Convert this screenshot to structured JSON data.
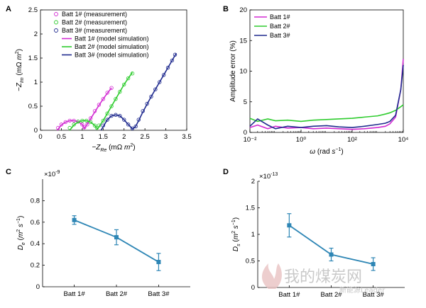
{
  "panels": {
    "A": {
      "letter": "A"
    },
    "B": {
      "letter": "B"
    },
    "C": {
      "letter": "C"
    },
    "D": {
      "letter": "D"
    }
  },
  "colors": {
    "batt1": "#d22ad2",
    "batt2": "#2ecc2e",
    "batt3": "#1f2a8e",
    "errorbar": "#2e86b5",
    "axis": "#000000",
    "watermark": "#c8c8c8"
  },
  "watermark": {
    "text": "我的煤炭网",
    "subtext": "新能源Leader",
    "logo_icon": "flame-logo-icon"
  },
  "chart_data": [
    {
      "id": "A",
      "type": "scatter",
      "xlabel": "−Z_Re (mΩ m²)",
      "ylabel": "−Z_Im (mΩ m²)",
      "xlim": [
        0,
        3.5
      ],
      "ylim": [
        0,
        2.5
      ],
      "xticks": [
        "0",
        "0.5",
        "1",
        "1.5",
        "2",
        "2.5",
        "3",
        "3.5"
      ],
      "yticks": [
        "0",
        "0.5",
        "1",
        "1.5",
        "2",
        "2.5"
      ],
      "legend": [
        "Batt 1# (measurement)",
        "Batt 2# (measurement)",
        "Batt 3# (measurement)",
        "Batt 1# (model simulation)",
        "Batt 2# (model simulation)",
        "Batt 3# (model simulation)"
      ],
      "legend_position": "top-right",
      "series": [
        {
          "name": "Batt 1# (measurement)",
          "kind": "markers",
          "x": [
            0.42,
            0.5,
            0.6,
            0.7,
            0.8,
            0.9,
            1.0,
            1.05,
            1.12,
            1.2,
            1.3,
            1.4,
            1.5,
            1.6,
            1.7
          ],
          "y": [
            0.05,
            0.12,
            0.17,
            0.2,
            0.2,
            0.18,
            0.12,
            0.06,
            0.12,
            0.25,
            0.4,
            0.53,
            0.65,
            0.78,
            0.88
          ]
        },
        {
          "name": "Batt 2# (measurement)",
          "kind": "markers",
          "x": [
            0.7,
            0.8,
            0.9,
            1.0,
            1.1,
            1.2,
            1.3,
            1.35,
            1.4,
            1.5,
            1.6,
            1.7,
            1.8,
            1.9,
            2.0,
            2.1,
            2.2
          ],
          "y": [
            0.05,
            0.12,
            0.18,
            0.2,
            0.2,
            0.17,
            0.1,
            0.05,
            0.1,
            0.2,
            0.35,
            0.5,
            0.65,
            0.8,
            0.95,
            1.08,
            1.18
          ]
        },
        {
          "name": "Batt 3# (measurement)",
          "kind": "markers",
          "x": [
            1.5,
            1.6,
            1.7,
            1.8,
            1.9,
            2.0,
            2.1,
            2.2,
            2.28,
            2.35,
            2.45,
            2.55,
            2.65,
            2.75,
            2.85,
            2.95,
            3.05,
            3.15,
            3.22
          ],
          "y": [
            0.1,
            0.22,
            0.3,
            0.32,
            0.3,
            0.22,
            0.12,
            0.04,
            0.08,
            0.22,
            0.4,
            0.55,
            0.7,
            0.85,
            1.0,
            1.15,
            1.3,
            1.45,
            1.57
          ]
        },
        {
          "name": "Batt 1# (model simulation)",
          "kind": "line",
          "x": [
            0.4,
            0.5,
            0.6,
            0.7,
            0.8,
            0.9,
            1.0,
            1.05,
            1.1,
            1.2,
            1.3,
            1.4,
            1.5,
            1.6,
            1.7
          ],
          "y": [
            0.0,
            0.11,
            0.17,
            0.2,
            0.2,
            0.18,
            0.12,
            0.04,
            0.1,
            0.24,
            0.38,
            0.52,
            0.65,
            0.77,
            0.88
          ]
        },
        {
          "name": "Batt 2# (model simulation)",
          "kind": "line",
          "x": [
            0.7,
            0.8,
            0.9,
            1.0,
            1.1,
            1.2,
            1.3,
            1.36,
            1.42,
            1.5,
            1.6,
            1.7,
            1.8,
            1.9,
            2.0,
            2.1,
            2.2
          ],
          "y": [
            0.0,
            0.11,
            0.17,
            0.2,
            0.2,
            0.17,
            0.1,
            0.03,
            0.1,
            0.2,
            0.35,
            0.5,
            0.65,
            0.8,
            0.95,
            1.08,
            1.2
          ]
        },
        {
          "name": "Batt 3# (model simulation)",
          "kind": "line",
          "x": [
            1.45,
            1.6,
            1.7,
            1.8,
            1.9,
            2.0,
            2.1,
            2.2,
            2.27,
            2.35,
            2.45,
            2.55,
            2.65,
            2.75,
            2.85,
            2.95,
            3.05,
            3.15,
            3.25
          ],
          "y": [
            0.0,
            0.22,
            0.3,
            0.32,
            0.3,
            0.22,
            0.12,
            0.03,
            0.07,
            0.2,
            0.38,
            0.54,
            0.7,
            0.85,
            1.0,
            1.15,
            1.3,
            1.45,
            1.6
          ]
        }
      ]
    },
    {
      "id": "B",
      "type": "line",
      "xlabel": "ω (rad s⁻¹)",
      "ylabel": "Amplitude error (%)",
      "xscale": "log",
      "xlim": [
        0.01,
        10000
      ],
      "ylim": [
        0,
        20
      ],
      "xticks": [
        "10⁻²",
        "10⁰",
        "10²",
        "10⁴"
      ],
      "yticks": [
        "0",
        "5",
        "10",
        "15",
        "20"
      ],
      "legend": [
        "Batt 1#",
        "Batt 2#",
        "Batt 3#"
      ],
      "legend_position": "top-left",
      "series": [
        {
          "name": "Batt 1#",
          "x": [
            0.01,
            0.02,
            0.05,
            0.1,
            0.3,
            1,
            3,
            10,
            30,
            100,
            300,
            1000,
            2000,
            3000,
            5000,
            8000,
            10000
          ],
          "y": [
            0.8,
            1.2,
            0.6,
            1.0,
            0.7,
            0.8,
            0.6,
            0.7,
            0.6,
            0.5,
            0.6,
            0.8,
            1.0,
            1.4,
            2.5,
            7.0,
            12.0
          ]
        },
        {
          "name": "Batt 2#",
          "x": [
            0.01,
            0.02,
            0.05,
            0.1,
            0.3,
            1,
            3,
            10,
            30,
            100,
            300,
            1000,
            2000,
            3000,
            5000,
            8000,
            10000
          ],
          "y": [
            2.3,
            1.8,
            2.2,
            1.9,
            2.0,
            1.8,
            2.0,
            2.1,
            2.2,
            2.3,
            2.5,
            2.7,
            3.0,
            3.2,
            3.6,
            4.2,
            4.5
          ]
        },
        {
          "name": "Batt 3#",
          "x": [
            0.01,
            0.02,
            0.05,
            0.1,
            0.3,
            1,
            3,
            10,
            30,
            100,
            300,
            1000,
            2000,
            3000,
            5000,
            8000,
            10000
          ],
          "y": [
            1.0,
            2.2,
            1.2,
            0.6,
            1.0,
            0.8,
            1.0,
            1.1,
            0.9,
            0.8,
            1.0,
            1.3,
            1.5,
            1.8,
            2.8,
            7.0,
            11.0
          ]
        }
      ]
    },
    {
      "id": "C",
      "type": "line",
      "xlabel": "",
      "ylabel": "D_e (m² s⁻¹)",
      "exponent_label": "×10⁻⁹",
      "categories": [
        "Batt 1#",
        "Batt 2#",
        "Batt 3#"
      ],
      "ylim": [
        0,
        1.0
      ],
      "yticks": [
        "0",
        "0.2",
        "0.4",
        "0.6",
        "0.8"
      ],
      "series": [
        {
          "values": [
            0.62,
            0.46,
            0.23
          ],
          "errors": [
            0.04,
            0.07,
            0.08
          ]
        }
      ]
    },
    {
      "id": "D",
      "type": "line",
      "xlabel": "",
      "ylabel": "D_s (m² s⁻¹)",
      "exponent_label": "×10⁻¹³",
      "categories": [
        "Batt 1#",
        "Batt 2#",
        "Batt 3#"
      ],
      "ylim": [
        0,
        2.0
      ],
      "yticks": [
        "0",
        "0.5",
        "1",
        "1.5",
        "2"
      ],
      "series": [
        {
          "values": [
            1.17,
            0.62,
            0.44
          ],
          "errors": [
            0.22,
            0.12,
            0.12
          ]
        }
      ]
    }
  ]
}
